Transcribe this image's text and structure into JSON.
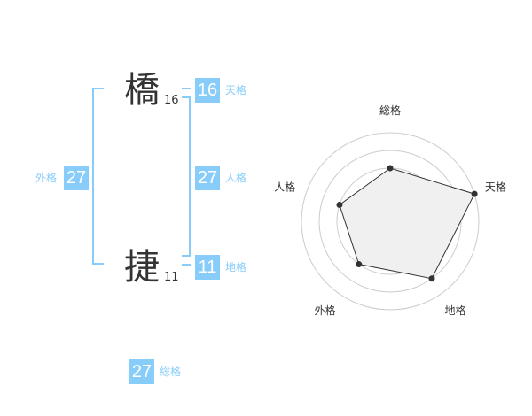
{
  "name": {
    "chars": [
      {
        "char": "橋",
        "strokes": "16"
      },
      {
        "char": "捷",
        "strokes": "11"
      }
    ]
  },
  "kaku": {
    "tenkaku": {
      "label": "天格",
      "value": "16"
    },
    "jinkaku": {
      "label": "人格",
      "value": "27"
    },
    "chikaku": {
      "label": "地格",
      "value": "11"
    },
    "gaikaku": {
      "label": "外格",
      "value": "27"
    },
    "soukaku": {
      "label": "総格",
      "value": "27"
    }
  },
  "colors": {
    "accent": "#88cdfa",
    "text": "#333333",
    "radar_fill": "#f0f0f0"
  },
  "chart_data": {
    "type": "radar",
    "axes": [
      "総格",
      "天格",
      "地格",
      "外格",
      "人格"
    ],
    "values": [
      3,
      5,
      4,
      3,
      3
    ],
    "range": [
      0,
      5
    ],
    "rings": 5
  }
}
